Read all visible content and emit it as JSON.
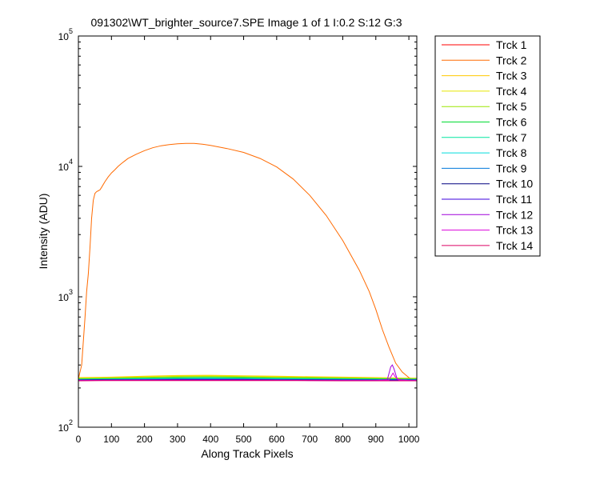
{
  "chart_data": {
    "type": "line",
    "title": "091302\\WT_brighter_source7.SPE  Image 1 of 1  I:0.2  S:12  G:3",
    "xlabel": "Along Track Pixels",
    "ylabel": "Intensity (ADU)",
    "xlim": [
      0,
      1024
    ],
    "ylim": [
      100,
      100000
    ],
    "yscale": "log",
    "grid": false,
    "legend_position": "outside-right",
    "x_ticks": [
      "0",
      "100",
      "200",
      "300",
      "400",
      "500",
      "600",
      "700",
      "800",
      "900",
      "1000"
    ],
    "y_ticks": [
      {
        "base": "10",
        "exp": "2"
      },
      {
        "base": "10",
        "exp": "3"
      },
      {
        "base": "10",
        "exp": "4"
      },
      {
        "base": "10",
        "exp": "5"
      }
    ],
    "series": [
      {
        "name": "Trck 1",
        "color": "#ff0000",
        "x": [
          0,
          100,
          200,
          300,
          400,
          500,
          600,
          700,
          800,
          900,
          1000,
          1024
        ],
        "y": [
          232,
          233,
          234,
          235,
          235,
          235,
          234,
          233,
          233,
          232,
          232,
          232
        ]
      },
      {
        "name": "Trck 2",
        "color": "#ff6a00",
        "x": [
          0,
          10,
          20,
          25,
          30,
          35,
          40,
          45,
          50,
          55,
          60,
          65,
          70,
          80,
          90,
          100,
          110,
          120,
          130,
          140,
          150,
          175,
          200,
          225,
          250,
          275,
          300,
          325,
          350,
          375,
          400,
          425,
          450,
          500,
          550,
          600,
          650,
          700,
          750,
          800,
          850,
          880,
          900,
          920,
          940,
          960,
          980,
          1000,
          1010,
          1024
        ],
        "y": [
          235,
          300,
          700,
          1100,
          1500,
          2400,
          4000,
          5500,
          6200,
          6400,
          6500,
          6600,
          6900,
          7600,
          8300,
          8900,
          9400,
          10000,
          10500,
          11000,
          11500,
          12400,
          13200,
          13900,
          14400,
          14700,
          14900,
          15000,
          15000,
          14800,
          14500,
          14100,
          13700,
          12800,
          11500,
          9900,
          8000,
          6000,
          4200,
          2700,
          1600,
          1100,
          800,
          560,
          410,
          310,
          265,
          240,
          235,
          232
        ]
      },
      {
        "name": "Trck 3",
        "color": "#ffc800",
        "x": [
          0,
          100,
          200,
          300,
          400,
          500,
          600,
          700,
          800,
          900,
          1000,
          1024
        ],
        "y": [
          240,
          242,
          246,
          249,
          250,
          248,
          246,
          244,
          242,
          240,
          238,
          238
        ]
      },
      {
        "name": "Trck 4",
        "color": "#e6e600",
        "x": [
          0,
          100,
          200,
          300,
          400,
          500,
          600,
          700,
          800,
          900,
          1000,
          1024
        ],
        "y": [
          238,
          240,
          244,
          247,
          248,
          246,
          244,
          242,
          240,
          238,
          236,
          236
        ]
      },
      {
        "name": "Trck 5",
        "color": "#9be600",
        "x": [
          0,
          100,
          200,
          300,
          400,
          500,
          600,
          700,
          800,
          900,
          1000,
          1024
        ],
        "y": [
          236,
          238,
          241,
          244,
          245,
          243,
          241,
          240,
          238,
          237,
          235,
          235
        ]
      },
      {
        "name": "Trck 6",
        "color": "#00dc32",
        "x": [
          0,
          100,
          200,
          300,
          400,
          500,
          600,
          700,
          800,
          900,
          1000,
          1024
        ],
        "y": [
          234,
          236,
          238,
          240,
          241,
          240,
          238,
          237,
          236,
          235,
          234,
          234
        ]
      },
      {
        "name": "Trck 7",
        "color": "#00e6a0",
        "x": [
          0,
          100,
          200,
          300,
          400,
          500,
          600,
          700,
          800,
          900,
          1000,
          1024
        ],
        "y": [
          233,
          234,
          236,
          237,
          238,
          237,
          236,
          235,
          234,
          233,
          233,
          233
        ]
      },
      {
        "name": "Trck 8",
        "color": "#00dcdc",
        "x": [
          0,
          100,
          200,
          300,
          400,
          500,
          600,
          700,
          800,
          900,
          1000,
          1024
        ],
        "y": [
          232,
          233,
          234,
          235,
          236,
          235,
          234,
          233,
          233,
          232,
          232,
          232
        ]
      },
      {
        "name": "Trck 9",
        "color": "#0078dc",
        "x": [
          0,
          100,
          200,
          300,
          400,
          500,
          600,
          700,
          800,
          900,
          1000,
          1024
        ],
        "y": [
          231,
          232,
          233,
          234,
          234,
          234,
          233,
          232,
          232,
          231,
          231,
          231
        ]
      },
      {
        "name": "Trck 10",
        "color": "#000080",
        "x": [
          0,
          100,
          200,
          300,
          400,
          500,
          600,
          700,
          800,
          900,
          1000,
          1024
        ],
        "y": [
          230,
          231,
          231,
          232,
          232,
          232,
          231,
          231,
          230,
          230,
          230,
          230
        ]
      },
      {
        "name": "Trck 11",
        "color": "#3c00dc",
        "x": [
          0,
          100,
          200,
          300,
          400,
          500,
          600,
          700,
          800,
          900,
          1000,
          1024
        ],
        "y": [
          229,
          230,
          231,
          231,
          231,
          231,
          230,
          230,
          229,
          229,
          229,
          229
        ]
      },
      {
        "name": "Trck 12",
        "color": "#a000dc",
        "x": [
          0,
          100,
          200,
          300,
          400,
          500,
          600,
          700,
          800,
          900,
          935,
          945,
          950,
          955,
          965,
          1000,
          1024
        ],
        "y": [
          229,
          229,
          230,
          230,
          230,
          230,
          229,
          229,
          229,
          229,
          232,
          290,
          300,
          280,
          232,
          229,
          229
        ]
      },
      {
        "name": "Trck 13",
        "color": "#dc00dc",
        "x": [
          0,
          100,
          200,
          300,
          400,
          500,
          600,
          700,
          800,
          900,
          940,
          948,
          952,
          958,
          970,
          1000,
          1024
        ],
        "y": [
          228,
          229,
          229,
          229,
          229,
          229,
          229,
          228,
          228,
          228,
          230,
          250,
          260,
          245,
          230,
          228,
          228
        ]
      },
      {
        "name": "Trck 14",
        "color": "#dc0064",
        "x": [
          0,
          100,
          200,
          300,
          400,
          500,
          600,
          700,
          800,
          900,
          1000,
          1024
        ],
        "y": [
          227,
          228,
          228,
          228,
          228,
          228,
          228,
          228,
          227,
          227,
          227,
          227
        ]
      }
    ]
  }
}
